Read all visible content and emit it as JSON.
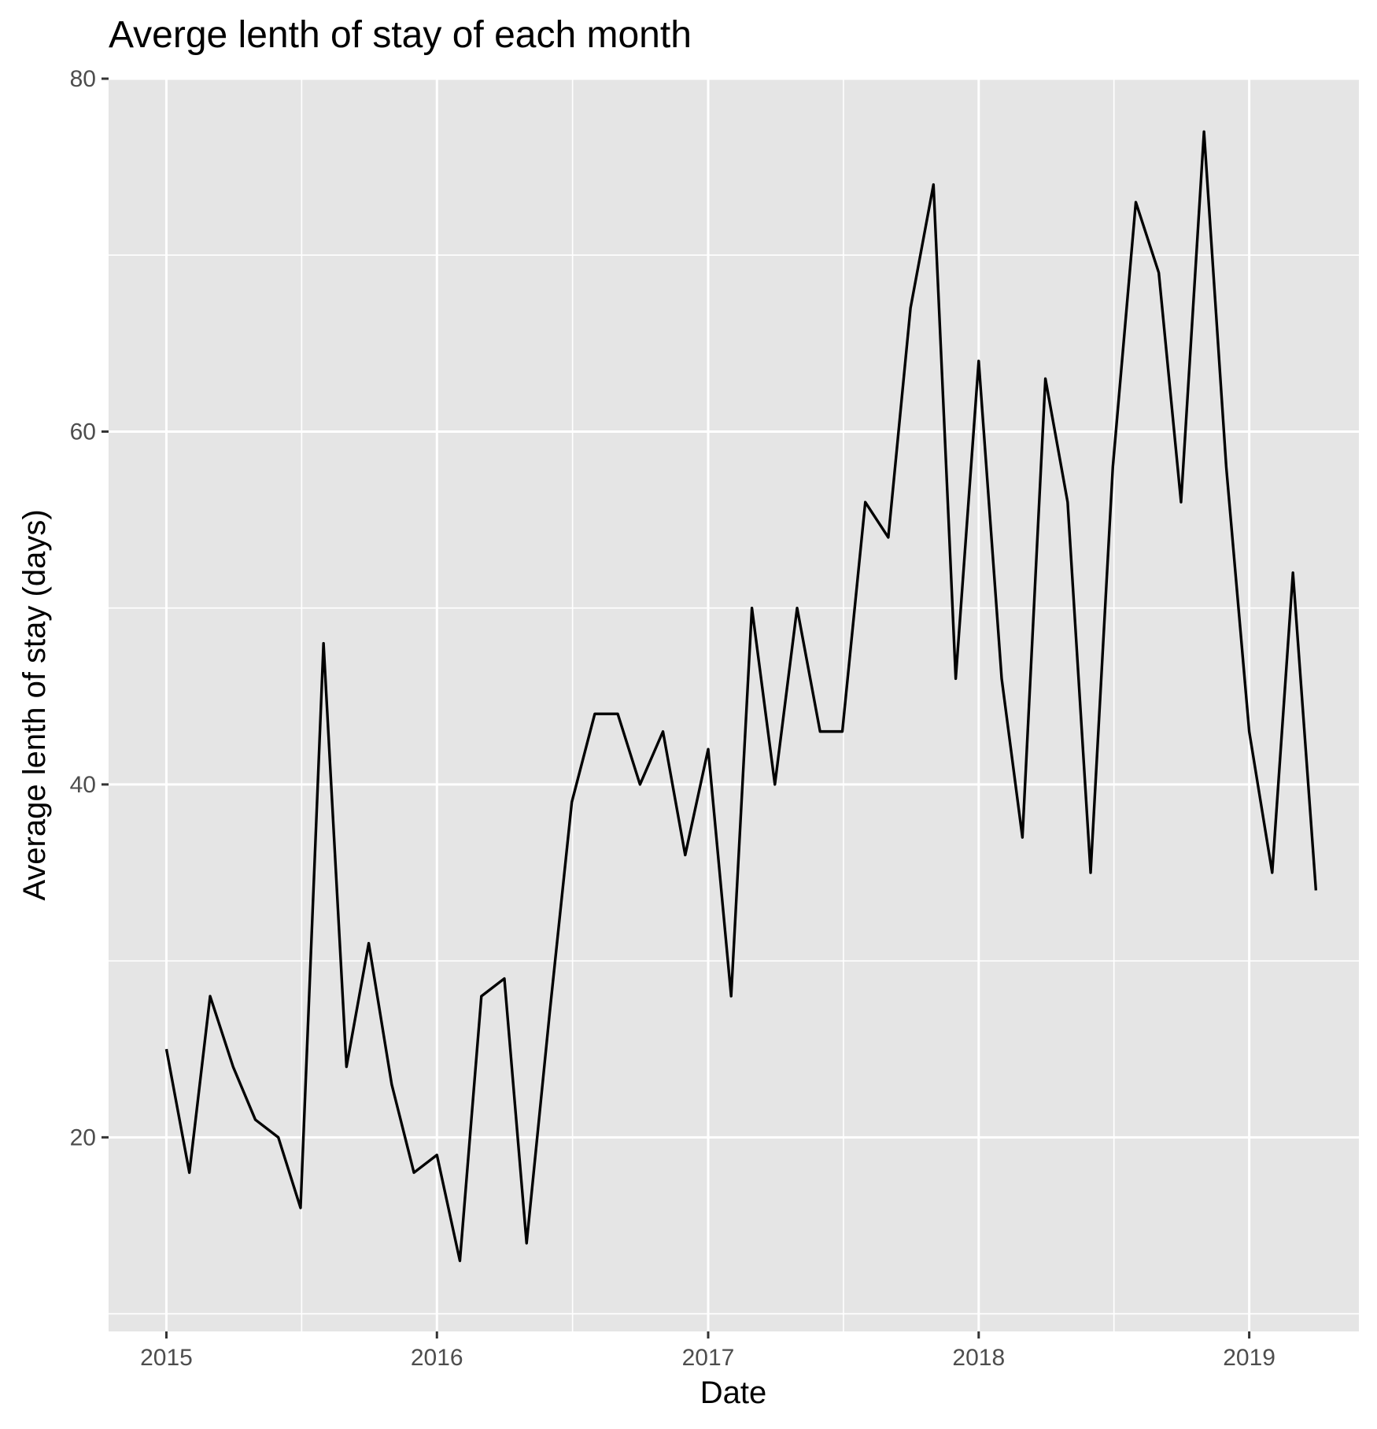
{
  "chart_data": {
    "type": "line",
    "title": "Averge lenth of stay of each month",
    "xlabel": "Date",
    "ylabel": "Average lenth of stay (days)",
    "xlim": [
      "2014-10-15",
      "2019-05-29"
    ],
    "ylim": [
      9,
      80
    ],
    "x_ticks": [
      "2015-01-01",
      "2016-01-01",
      "2017-01-01",
      "2018-01-01",
      "2019-01-01"
    ],
    "x_tick_labels": [
      "2015",
      "2016",
      "2017",
      "2018",
      "2019"
    ],
    "y_ticks": [
      20,
      40,
      60,
      80
    ],
    "y_tick_labels": [
      "20",
      "40",
      "60",
      "80"
    ],
    "grid": true,
    "colors": {
      "panel": "#e5e5e5",
      "grid": "#ffffff",
      "line": "#000000",
      "tick_text": "#4d4d4d"
    },
    "series": [
      {
        "x": [
          "2015-01-01",
          "2015-02-01",
          "2015-03-01",
          "2015-04-01",
          "2015-05-01",
          "2015-06-01",
          "2015-07-01",
          "2015-08-01",
          "2015-09-01",
          "2015-10-01",
          "2015-11-01",
          "2015-12-01",
          "2016-01-01",
          "2016-02-01",
          "2016-03-01",
          "2016-04-01",
          "2016-05-01",
          "2016-06-01",
          "2016-07-01",
          "2016-08-01",
          "2016-09-01",
          "2016-10-01",
          "2016-11-01",
          "2016-12-01",
          "2017-01-01",
          "2017-02-01",
          "2017-03-01",
          "2017-04-01",
          "2017-05-01",
          "2017-06-01",
          "2017-07-01",
          "2017-08-01",
          "2017-09-01",
          "2017-10-01",
          "2017-11-01",
          "2017-12-01",
          "2018-01-01",
          "2018-02-01",
          "2018-03-01",
          "2018-04-01",
          "2018-05-01",
          "2018-06-01",
          "2018-07-01",
          "2018-08-01",
          "2018-09-01",
          "2018-10-01",
          "2018-11-01",
          "2018-12-01",
          "2019-01-01",
          "2019-02-01",
          "2019-03-01",
          "2019-04-01"
        ],
        "values": [
          25,
          18,
          28,
          24,
          21,
          20,
          16,
          48,
          24,
          31,
          23,
          18,
          19,
          13,
          28,
          29,
          14,
          27,
          39,
          44,
          44,
          40,
          43,
          36,
          42,
          28,
          50,
          40,
          50,
          43,
          43,
          56,
          54,
          67,
          74,
          46,
          64,
          46,
          37,
          63,
          56,
          35,
          58,
          73,
          69,
          56,
          77,
          58,
          43,
          35,
          52,
          34
        ]
      }
    ]
  }
}
